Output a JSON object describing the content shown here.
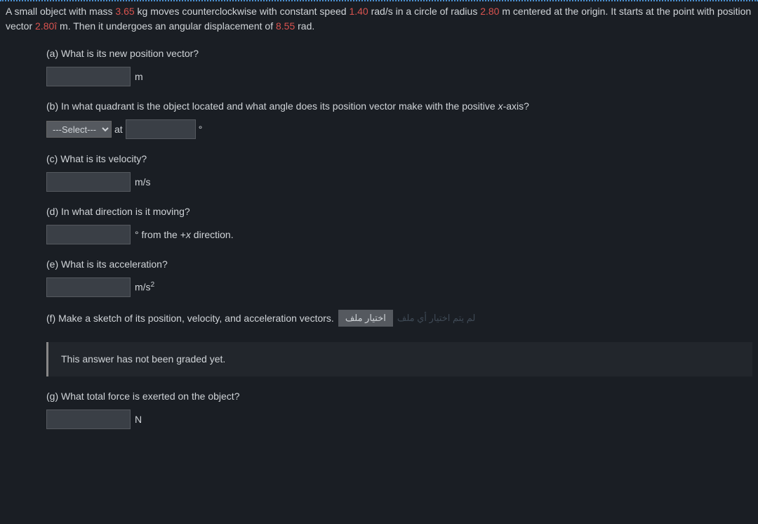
{
  "intro": {
    "seg1": "A small object with mass ",
    "mass": "3.65",
    "seg2": " kg moves counterclockwise with constant speed ",
    "speed": "1.40",
    "seg3": " rad/s in a circle of radius ",
    "radius": "2.80",
    "seg4": " m centered at the origin. It starts at the point with position vector ",
    "startpos": "2.80î",
    "seg5": " m. Then it undergoes an angular displacement of ",
    "disp": "8.55",
    "seg6": " rad."
  },
  "a": {
    "q": "(a) What is its new position vector?",
    "unit": "m"
  },
  "b": {
    "q_pre": "(b) In what quadrant is the object located and what angle does its position vector make with the positive ",
    "q_x": "x",
    "q_post": "-axis?",
    "select_placeholder": "---Select---",
    "at": " at ",
    "deg": "°"
  },
  "c": {
    "q": "(c) What is its velocity?",
    "unit": "m/s"
  },
  "d": {
    "q": "(d) In what direction is it moving?",
    "suffix_pre": "° from the +",
    "suffix_x": "x",
    "suffix_post": " direction."
  },
  "e": {
    "q": "(e) What is its acceleration?",
    "unit_pre": "m/s",
    "unit_exp": "2"
  },
  "f": {
    "q": "(f) Make a sketch of its position, velocity, and acceleration vectors.",
    "file_btn": "اختيار ملف",
    "file_hint": "لم يتم اختيار أي ملف",
    "notice": "This answer has not been graded yet."
  },
  "g": {
    "q": "(g) What total force is exerted on the object?",
    "unit": "N"
  }
}
